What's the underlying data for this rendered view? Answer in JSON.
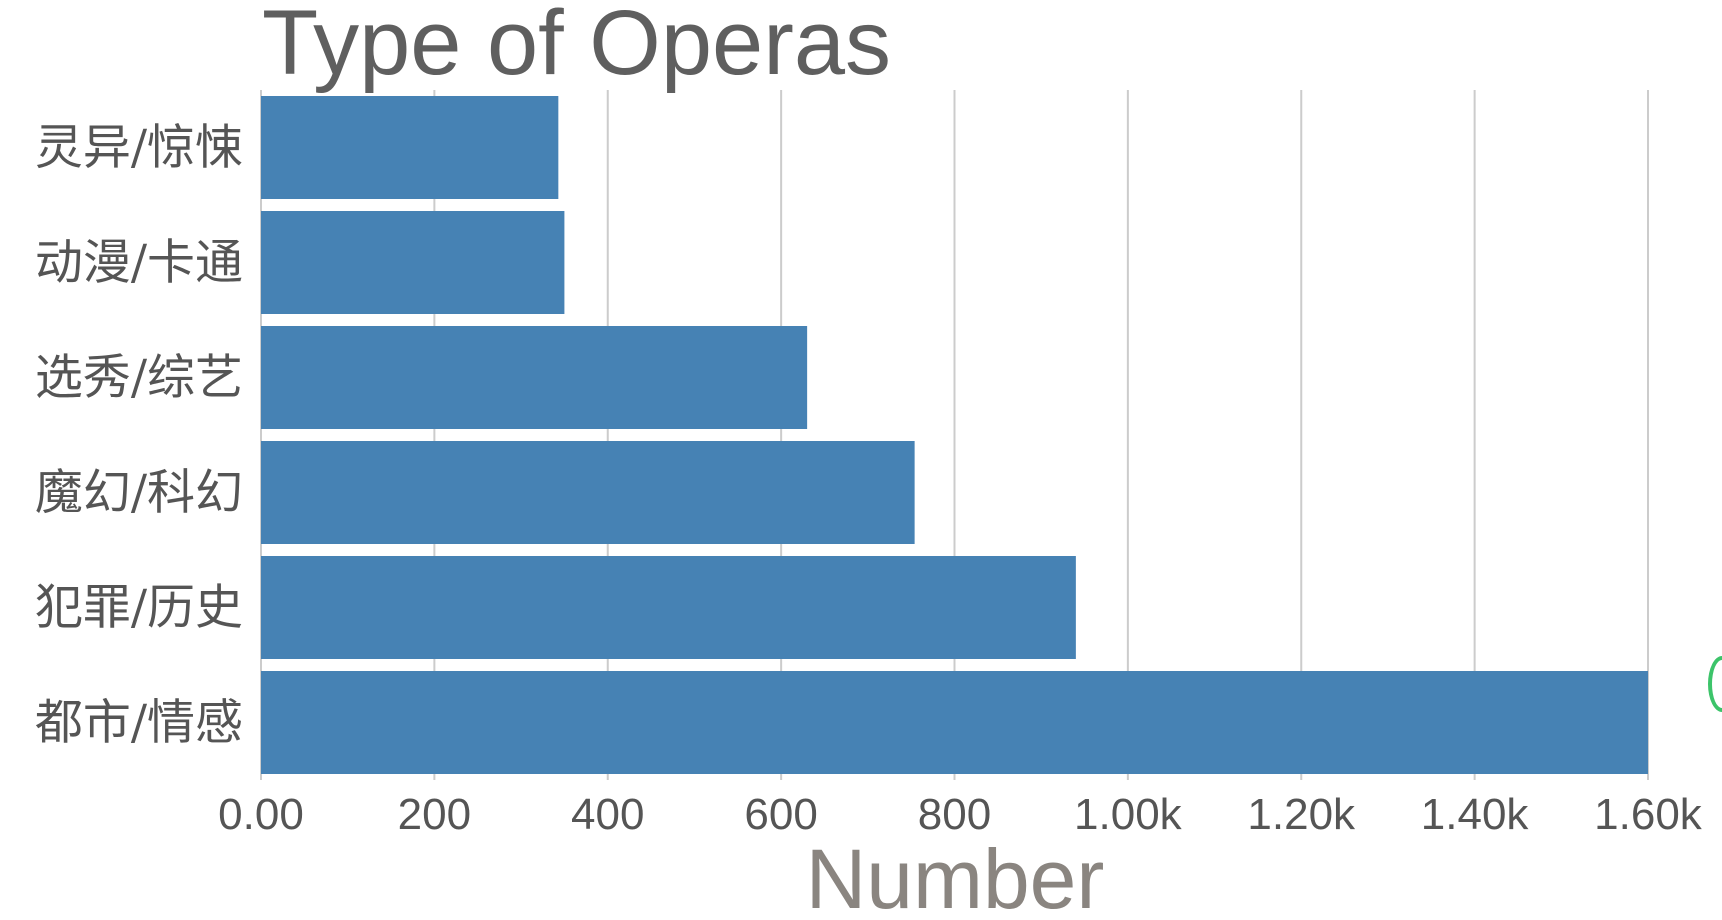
{
  "chart_data": {
    "type": "bar",
    "orientation": "horizontal",
    "title": "Type of Operas",
    "xlabel": "Number",
    "ylabel": "",
    "categories": [
      "灵异/惊悚",
      "动漫/卡通",
      "选秀/综艺",
      "魔幻/科幻",
      "犯罪/历史",
      "都市/情感"
    ],
    "values": [
      343,
      350,
      630,
      754,
      940,
      1600
    ],
    "xlim": [
      0,
      1600
    ],
    "xticks": [
      "0.00",
      "200",
      "400",
      "600",
      "800",
      "1.00k",
      "1.20k",
      "1.40k",
      "1.60k"
    ],
    "grid": "vertical",
    "bar_color": "#4682b4",
    "legend": "none"
  }
}
